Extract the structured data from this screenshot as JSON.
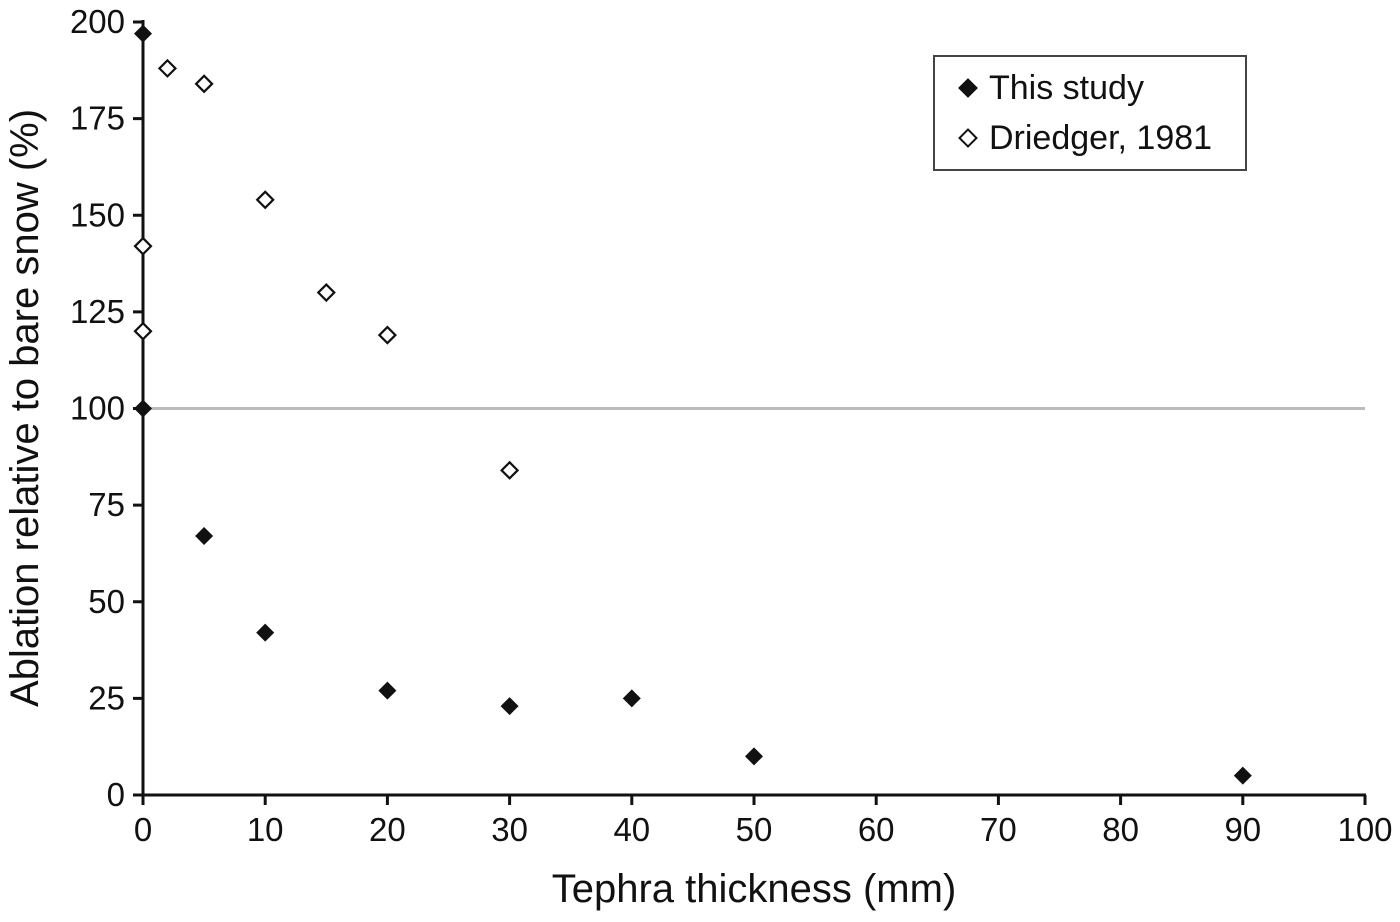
{
  "chart_data": {
    "type": "scatter",
    "title": "",
    "xlabel": "Tephra thickness (mm)",
    "ylabel": "Ablation relative to bare snow (%)",
    "xlim": [
      0,
      100
    ],
    "ylim": [
      0,
      200
    ],
    "xticks": [
      0,
      10,
      20,
      30,
      40,
      50,
      60,
      70,
      80,
      90,
      100
    ],
    "yticks": [
      0,
      25,
      50,
      75,
      100,
      125,
      150,
      175,
      200
    ],
    "grid": "off",
    "reference_line_y": 100,
    "legend_position": "top-right",
    "series": [
      {
        "name": "This study",
        "marker": "filled-diamond",
        "color": "#111111",
        "points": [
          [
            0,
            197
          ],
          [
            0,
            100
          ],
          [
            5,
            67
          ],
          [
            10,
            42
          ],
          [
            20,
            27
          ],
          [
            30,
            23
          ],
          [
            40,
            25
          ],
          [
            50,
            10
          ],
          [
            90,
            5
          ]
        ]
      },
      {
        "name": "Driedger, 1981",
        "marker": "open-diamond",
        "color": "#111111",
        "points": [
          [
            0,
            142
          ],
          [
            0,
            120
          ],
          [
            2,
            188
          ],
          [
            5,
            184
          ],
          [
            10,
            154
          ],
          [
            15,
            130
          ],
          [
            20,
            119
          ],
          [
            30,
            84
          ]
        ]
      }
    ]
  },
  "colors": {
    "background": "#ffffff",
    "axis": "#111111",
    "text": "#111111",
    "reference_line": "#bcbcbc",
    "legend_border": "#444444"
  }
}
